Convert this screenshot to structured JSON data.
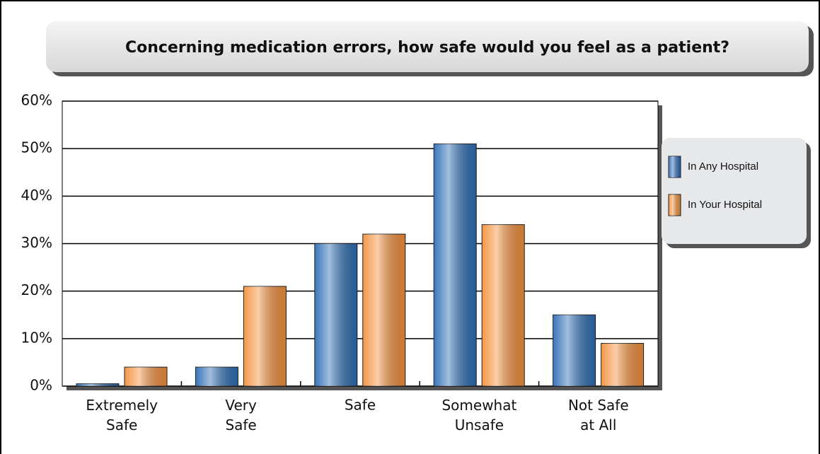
{
  "chart_data": {
    "type": "bar",
    "title": "Concerning medication errors, how safe would you feel as a patient?",
    "categories": [
      "Extremely\nSafe",
      "Very\nSafe",
      "Safe",
      "Somewhat\nUnsafe",
      "Not Safe\nat All"
    ],
    "series": [
      {
        "name": "In Any Hospital",
        "color": "#2f6fb7",
        "values": [
          0.5,
          4,
          30,
          51,
          15
        ]
      },
      {
        "name": "In Your Hospital",
        "color": "#f5923e",
        "values": [
          4,
          21,
          32,
          34,
          9
        ]
      }
    ],
    "ylim": [
      0,
      60
    ],
    "yticks": [
      {
        "value": 0,
        "label": "0%"
      },
      {
        "value": 10,
        "label": "10%"
      },
      {
        "value": 20,
        "label": "20%"
      },
      {
        "value": 30,
        "label": "30%"
      },
      {
        "value": 40,
        "label": "40%"
      },
      {
        "value": 50,
        "label": "50%"
      },
      {
        "value": 60,
        "label": "60%"
      }
    ],
    "grid": true,
    "legend": "right"
  }
}
